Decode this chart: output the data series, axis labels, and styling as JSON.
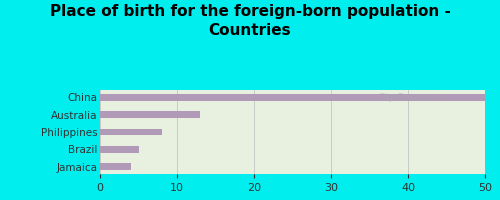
{
  "title": "Place of birth for the foreign-born population -\nCountries",
  "categories": [
    "China",
    "Australia",
    "Philippines",
    "Brazil",
    "Jamaica"
  ],
  "values": [
    50,
    13,
    8,
    5,
    4
  ],
  "bar_color": "#b09ab8",
  "background_color": "#00eeee",
  "plot_bg_color": "#e8f0e0",
  "xlim": [
    0,
    50
  ],
  "xticks": [
    0,
    10,
    20,
    30,
    40,
    50
  ],
  "title_fontsize": 11,
  "label_fontsize": 7.5,
  "tick_fontsize": 8,
  "watermark": "City-Data.com"
}
